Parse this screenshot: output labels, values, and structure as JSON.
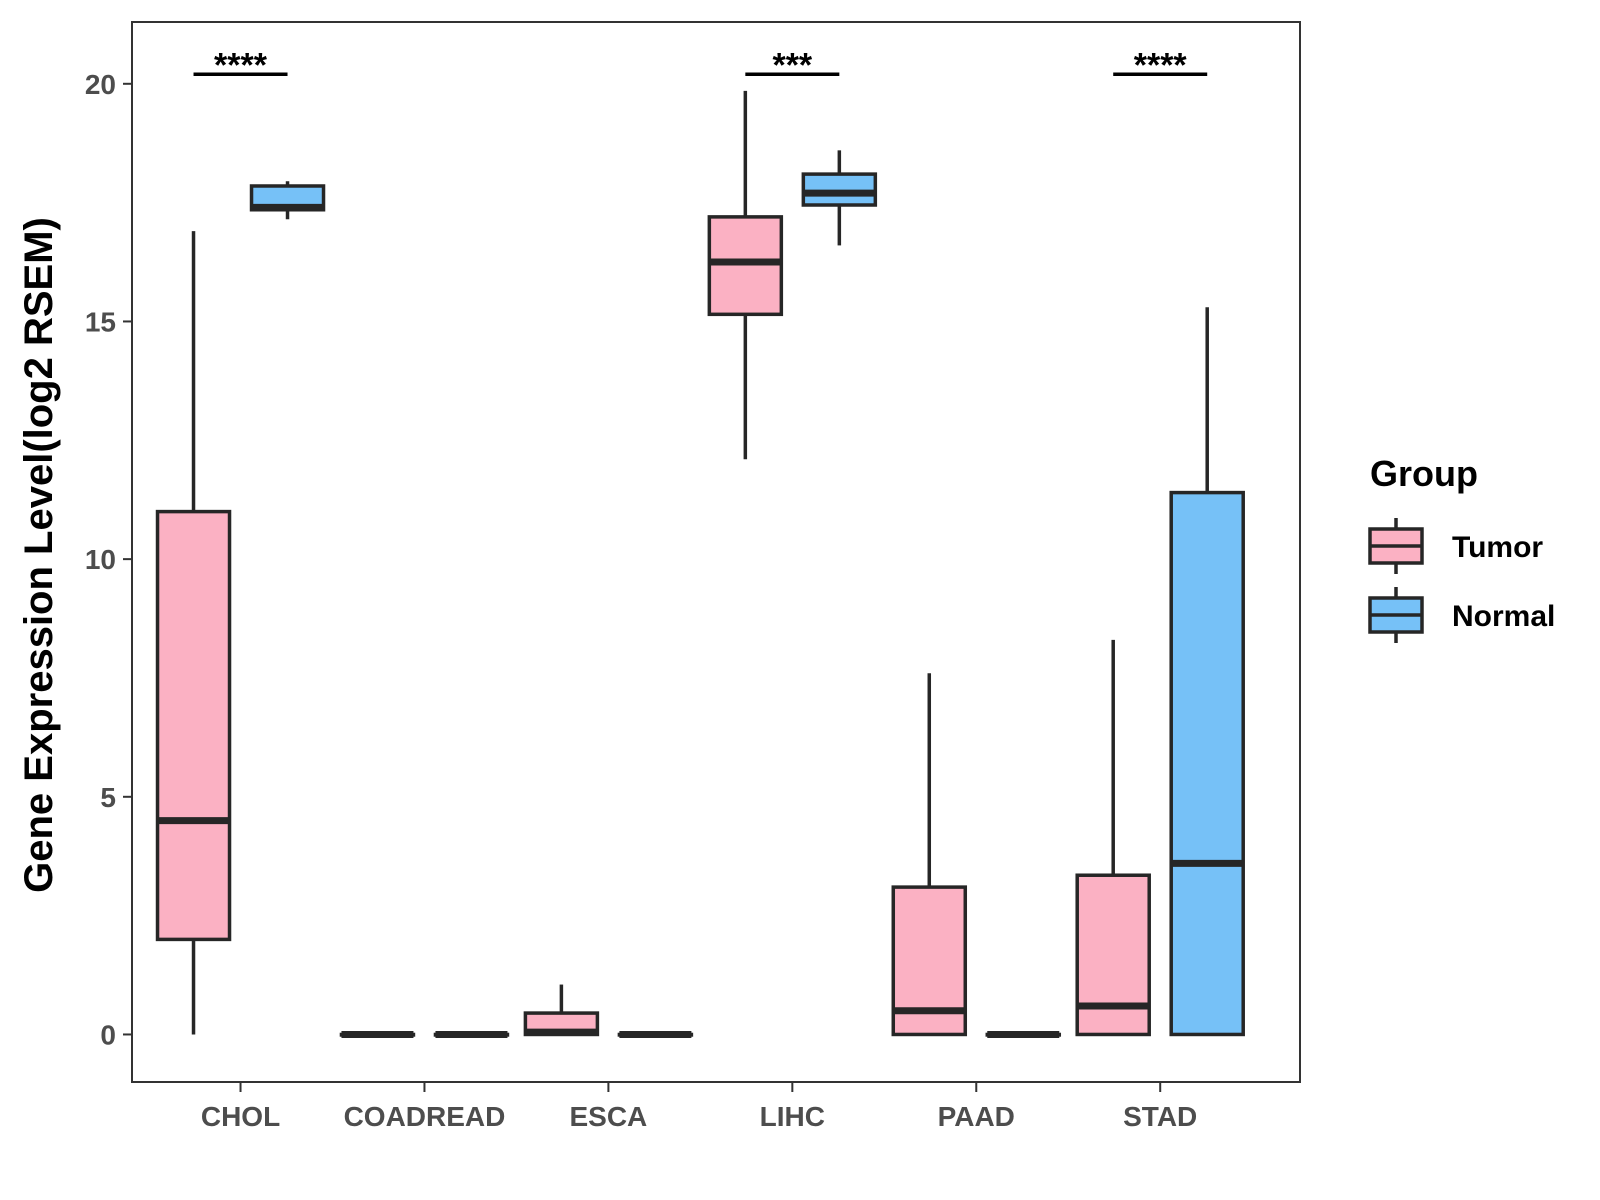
{
  "chart_data": {
    "type": "boxplot",
    "title": "",
    "xlabel": "",
    "ylabel": "Gene Expression Level(log2 RSEM)",
    "ylim": [
      -1,
      21.3
    ],
    "yticks": [
      0,
      5,
      10,
      15,
      20
    ],
    "grid": false,
    "categories": [
      "CHOL",
      "COADREAD",
      "ESCA",
      "LIHC",
      "PAAD",
      "STAD"
    ],
    "legend": {
      "title": "Group",
      "position": "right",
      "entries": [
        {
          "name": "Tumor",
          "color": "#FBB1C3"
        },
        {
          "name": "Normal",
          "color": "#76C1F7"
        }
      ]
    },
    "series": [
      {
        "name": "Tumor",
        "color": "#FBB1C3",
        "boxes": [
          {
            "category": "CHOL",
            "min": 0.0,
            "q1": 2.0,
            "median": 4.5,
            "q3": 11.0,
            "max": 16.9
          },
          {
            "category": "COADREAD",
            "min": 0.0,
            "q1": 0.0,
            "median": 0.0,
            "q3": 0.0,
            "max": 0.0
          },
          {
            "category": "ESCA",
            "min": 0.0,
            "q1": 0.0,
            "median": 0.05,
            "q3": 0.45,
            "max": 1.05
          },
          {
            "category": "LIHC",
            "min": 12.1,
            "q1": 15.15,
            "median": 16.25,
            "q3": 17.2,
            "max": 19.85
          },
          {
            "category": "PAAD",
            "min": 0.0,
            "q1": 0.0,
            "median": 0.5,
            "q3": 3.1,
            "max": 7.6
          },
          {
            "category": "STAD",
            "min": 0.0,
            "q1": 0.0,
            "median": 0.6,
            "q3": 3.35,
            "max": 8.3
          }
        ]
      },
      {
        "name": "Normal",
        "color": "#76C1F7",
        "boxes": [
          {
            "category": "CHOL",
            "min": 17.15,
            "q1": 17.35,
            "median": 17.4,
            "q3": 17.85,
            "max": 17.95
          },
          {
            "category": "COADREAD",
            "min": 0.0,
            "q1": 0.0,
            "median": 0.0,
            "q3": 0.0,
            "max": 0.0
          },
          {
            "category": "ESCA",
            "min": 0.0,
            "q1": 0.0,
            "median": 0.0,
            "q3": 0.0,
            "max": 0.0
          },
          {
            "category": "LIHC",
            "min": 16.6,
            "q1": 17.45,
            "median": 17.7,
            "q3": 18.1,
            "max": 18.6
          },
          {
            "category": "PAAD",
            "min": 0.0,
            "q1": 0.0,
            "median": 0.0,
            "q3": 0.0,
            "max": 0.0
          },
          {
            "category": "STAD",
            "min": 0.0,
            "q1": 0.0,
            "median": 3.6,
            "q3": 11.4,
            "max": 15.3
          }
        ]
      }
    ],
    "significance": [
      {
        "category": "CHOL",
        "label": "****"
      },
      {
        "category": "LIHC",
        "label": "***"
      },
      {
        "category": "STAD",
        "label": "****"
      }
    ]
  }
}
